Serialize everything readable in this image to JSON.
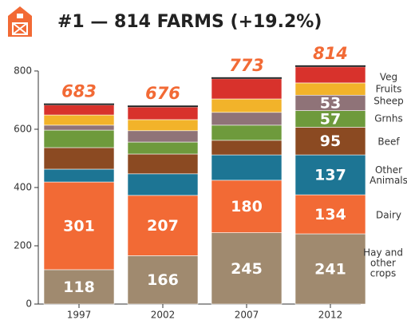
{
  "chart_data": {
    "type": "stacked-bar",
    "title": "#1 — 814 FARMS (+19.2%)",
    "categories": [
      "1997",
      "2002",
      "2007",
      "2012"
    ],
    "totals": [
      683,
      676,
      773,
      814
    ],
    "ylim": [
      0,
      830
    ],
    "yticks": [
      0,
      200,
      400,
      600,
      800
    ],
    "series": [
      {
        "name": "Hay and other crops",
        "color": "#a08a6f",
        "values": [
          118,
          166,
          245,
          241
        ],
        "value_labels": [
          "118",
          "166",
          "245",
          "241"
        ]
      },
      {
        "name": "Dairy",
        "color": "#f26a35",
        "values": [
          301,
          207,
          180,
          134
        ],
        "value_labels": [
          "301",
          "207",
          "180",
          "134"
        ]
      },
      {
        "name": "Other Animals",
        "color": "#1d7594",
        "values": [
          44,
          74,
          87,
          137
        ],
        "value_labels": [
          null,
          null,
          null,
          "137"
        ]
      },
      {
        "name": "Beef",
        "color": "#8b4a22",
        "values": [
          74,
          68,
          50,
          95
        ],
        "value_labels": [
          null,
          null,
          null,
          "95"
        ]
      },
      {
        "name": "Grnhs",
        "color": "#6e9a3c",
        "values": [
          60,
          41,
          52,
          57
        ],
        "value_labels": [
          null,
          null,
          null,
          "57"
        ]
      },
      {
        "name": "Sheep",
        "color": "#8f7378",
        "values": [
          17,
          39,
          44,
          53
        ],
        "value_labels": [
          null,
          null,
          null,
          "53"
        ]
      },
      {
        "name": "Fruits",
        "color": "#f2b32a",
        "values": [
          35,
          38,
          46,
          42
        ]
      },
      {
        "name": "Veg",
        "color": "#d8322c",
        "values": [
          34,
          43,
          69,
          55
        ]
      }
    ]
  }
}
